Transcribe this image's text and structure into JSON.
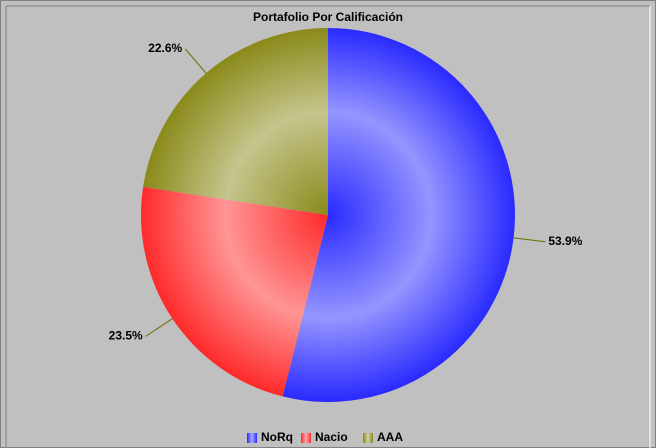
{
  "chart_data": {
    "type": "pie",
    "title": "Portafolio Por Calificación",
    "categories": [
      "NoRq",
      "Nacio",
      "AAA"
    ],
    "values": [
      53.9,
      23.5,
      22.6
    ],
    "value_labels": [
      "53.9%",
      "23.5%",
      "22.6%"
    ],
    "colors": [
      "#2a2aff",
      "#ff2a2a",
      "#8a8a1a"
    ],
    "legend": "bottom"
  }
}
